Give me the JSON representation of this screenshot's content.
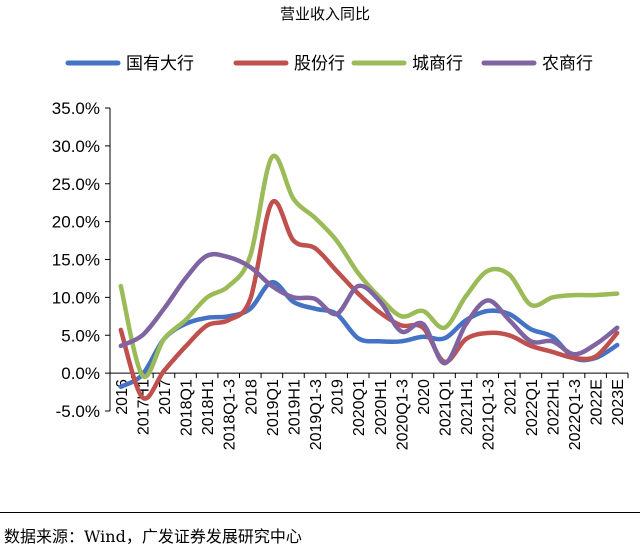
{
  "chart_data": {
    "type": "line",
    "title": "营业收入同比",
    "xlabel": "",
    "ylabel": "",
    "categories": [
      "2016",
      "2017H1",
      "2017",
      "2018Q1",
      "2018H1",
      "2018Q1-3",
      "2018",
      "2019Q1",
      "2019H1",
      "2019Q1-3",
      "2019",
      "2020Q1",
      "2020H1",
      "2020Q1-3",
      "2020",
      "2021Q1",
      "2021H1",
      "2021Q1-3",
      "2021",
      "2022Q1",
      "2022H1",
      "2022Q1-3",
      "2022E",
      "2023E"
    ],
    "ylim": [
      -5.0,
      35.0
    ],
    "yticks": [
      -5.0,
      0.0,
      5.0,
      10.0,
      15.0,
      20.0,
      25.0,
      30.0,
      35.0
    ],
    "ytick_labels": [
      "-5.0%",
      "0.0%",
      "5.0%",
      "10.0%",
      "15.0%",
      "20.0%",
      "25.0%",
      "30.0%",
      "35.0%"
    ],
    "grid": false,
    "legend_position": "top",
    "series": [
      {
        "name": "国有大行",
        "color": "#4472C4",
        "values": [
          -1.8,
          -0.2,
          4.5,
          6.5,
          7.3,
          7.5,
          8.5,
          12.0,
          9.4,
          8.5,
          7.8,
          4.6,
          4.2,
          4.2,
          4.8,
          4.6,
          7.0,
          8.2,
          7.8,
          5.8,
          4.8,
          2.0,
          2.0,
          3.7
        ]
      },
      {
        "name": "股份行",
        "color": "#C0504D",
        "values": [
          5.7,
          -3.2,
          0.3,
          3.5,
          6.3,
          7.0,
          9.8,
          22.5,
          17.5,
          16.5,
          13.5,
          10.5,
          8.0,
          6.3,
          6.0,
          1.5,
          4.5,
          5.3,
          5.0,
          3.6,
          2.8,
          2.0,
          2.2,
          5.3
        ]
      },
      {
        "name": "城商行",
        "color": "#9BBB59",
        "values": [
          11.5,
          -0.3,
          4.5,
          7.0,
          10.0,
          11.5,
          15.5,
          28.5,
          23.0,
          20.5,
          17.5,
          13.2,
          10.0,
          7.5,
          8.2,
          6.0,
          10.2,
          13.5,
          13.0,
          9.0,
          10.0,
          10.3,
          10.3,
          10.5
        ]
      },
      {
        "name": "农商行",
        "color": "#8064A2",
        "values": [
          3.6,
          5.0,
          8.5,
          12.5,
          15.5,
          15.3,
          14.0,
          11.5,
          10.0,
          9.8,
          7.8,
          11.5,
          9.5,
          5.5,
          6.5,
          1.3,
          6.5,
          9.6,
          7.0,
          4.2,
          4.2,
          2.5,
          3.8,
          6.0
        ]
      }
    ]
  },
  "footer": {
    "source": "数据来源：Wind，广发证券发展研究中心"
  }
}
